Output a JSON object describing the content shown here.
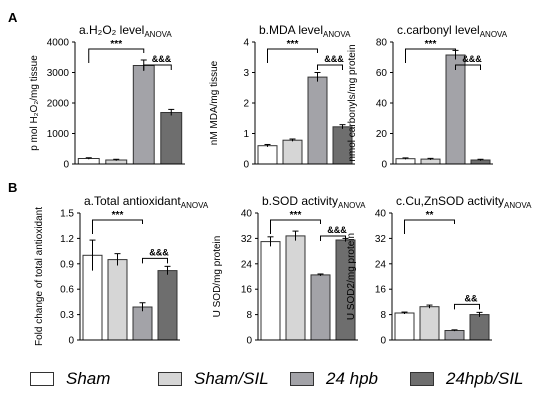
{
  "panel_labels": [
    "A",
    "B"
  ],
  "legend": [
    {
      "label": "Sham",
      "color": "#ffffff"
    },
    {
      "label": "Sham/SIL",
      "color": "#d6d6d6"
    },
    {
      "label": "24 hpb",
      "color": "#a3a3a8"
    },
    {
      "label": "24hpb/SIL",
      "color": "#6e6e6e"
    }
  ],
  "chart_data": [
    {
      "type": "bar",
      "title": "a.H2O2 level",
      "title_main": "a.H₂O₂ level",
      "title_sub": "ANOVA",
      "ylabel": "p mol H₂O₂/mg tissue",
      "ylim": [
        0,
        4000
      ],
      "yticks": [
        "0",
        "1000",
        "2000",
        "3000",
        "4000"
      ],
      "categories": [
        "Sham",
        "Sham/SIL",
        "24 hpb",
        "24hpb/SIL"
      ],
      "values": [
        180,
        130,
        3230,
        1690
      ],
      "errors": [
        25,
        25,
        180,
        100
      ],
      "annotations": [
        {
          "text": "***",
          "from": 0,
          "to": 2
        },
        {
          "text": "&&&",
          "from": 2,
          "to": 3
        }
      ]
    },
    {
      "type": "bar",
      "title": "b.MDA level",
      "title_main": "b.MDA level",
      "title_sub": "ANOVA",
      "ylabel": "nM MDA/mg tissue",
      "ylim": [
        0,
        4
      ],
      "yticks": [
        "0",
        "1",
        "2",
        "3",
        "4"
      ],
      "categories": [
        "Sham",
        "Sham/SIL",
        "24 hpb",
        "24hpb/SIL"
      ],
      "values": [
        0.6,
        0.78,
        2.85,
        1.22
      ],
      "errors": [
        0.04,
        0.04,
        0.15,
        0.07
      ],
      "annotations": [
        {
          "text": "***",
          "from": 0,
          "to": 2
        },
        {
          "text": "&&&",
          "from": 2,
          "to": 3
        }
      ]
    },
    {
      "type": "bar",
      "title": "c.carbonyl level",
      "title_main": "c.carbonyl level",
      "title_sub": "ANOVA",
      "ylabel": "nmol carbonyls/mg protein",
      "ylim": [
        0,
        80
      ],
      "yticks": [
        "0",
        "20",
        "40",
        "60",
        "80"
      ],
      "categories": [
        "Sham",
        "Sham/SIL",
        "24 hpb",
        "24hpb/SIL"
      ],
      "values": [
        3.5,
        3.2,
        71.5,
        2.6
      ],
      "errors": [
        0.5,
        0.5,
        3,
        0.5
      ],
      "annotations": [
        {
          "text": "***",
          "from": 0,
          "to": 2
        },
        {
          "text": "&&&",
          "from": 2,
          "to": 3
        }
      ]
    },
    {
      "type": "bar",
      "title": "a.Total antioxidant",
      "title_main": "a.Total antioxidant",
      "title_sub": "ANOVA",
      "ylabel": "Fold change of total antioxidant",
      "ylim": [
        0,
        1.5
      ],
      "yticks": [
        "0",
        "0.3",
        "0.6",
        "0.9",
        "1.2",
        "1.5"
      ],
      "categories": [
        "Sham",
        "Sham/SIL",
        "24 hpb",
        "24hpb/SIL"
      ],
      "values": [
        1.0,
        0.95,
        0.39,
        0.82
      ],
      "errors": [
        0.18,
        0.07,
        0.05,
        0.05
      ],
      "annotations": [
        {
          "text": "***",
          "from": 0,
          "to": 2
        },
        {
          "text": "&&&",
          "from": 2,
          "to": 3
        }
      ]
    },
    {
      "type": "bar",
      "title": "b.SOD activity",
      "title_main": "b.SOD activity",
      "title_sub": "ANOVA",
      "ylabel": "U SOD/mg protein",
      "ylim": [
        0,
        40
      ],
      "yticks": [
        "0",
        "8",
        "16",
        "24",
        "32",
        "40"
      ],
      "categories": [
        "Sham",
        "Sham/SIL",
        "24 hpb",
        "24hpb/SIL"
      ],
      "values": [
        31,
        32.8,
        20.5,
        31.5
      ],
      "errors": [
        1.5,
        1.5,
        0.3,
        0.5
      ],
      "annotations": [
        {
          "text": "***",
          "from": 0,
          "to": 2
        },
        {
          "text": "&&&",
          "from": 2,
          "to": 3
        }
      ]
    },
    {
      "type": "bar",
      "title": "c.Cu,ZnSOD activity",
      "title_main": "c.Cu,ZnSOD activity",
      "title_sub": "ANOVA",
      "ylabel": "U SOD2/mg protein",
      "ylim": [
        0,
        40
      ],
      "yticks": [
        "0",
        "8",
        "16",
        "24",
        "32",
        "40"
      ],
      "categories": [
        "Sham",
        "Sham/SIL",
        "24 hpb",
        "24hpb/SIL"
      ],
      "values": [
        8.5,
        10.5,
        3.0,
        8.0
      ],
      "errors": [
        0.3,
        0.5,
        0.2,
        0.7
      ],
      "annotations": [
        {
          "text": "**",
          "from": 0,
          "to": 2
        },
        {
          "text": "&&",
          "from": 2,
          "to": 3
        }
      ]
    }
  ]
}
